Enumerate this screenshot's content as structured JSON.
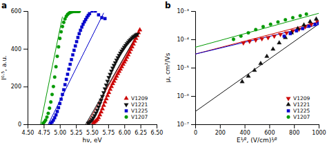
{
  "chart_data": [
    {
      "type": "scatter",
      "title": "a",
      "xlabel": "hν, eV",
      "ylabel": "I⁰·⁵, a.u.",
      "xlim": [
        4.5,
        6.5
      ],
      "ylim": [
        0,
        600
      ],
      "xticks": [
        {
          "value": 4.5,
          "label": "4.50"
        },
        4.75,
        {
          "value": 5.0,
          "label": "5.00"
        },
        5.25,
        {
          "value": 5.5,
          "label": "5.50"
        },
        5.75,
        {
          "value": 6.0,
          "label": "6.00"
        },
        6.25,
        {
          "value": 6.5,
          "label": "6.50"
        }
      ],
      "yticks": [
        0,
        200,
        400,
        600
      ],
      "grid": false,
      "legend": "lower right",
      "series": [
        {
          "name": "V1209",
          "type": "scatter",
          "color": "#cc0000",
          "marker": "triangle-up",
          "x": [
            5.52,
            5.54,
            5.56,
            5.58,
            5.6,
            5.62,
            5.64,
            5.66,
            5.68,
            5.7,
            5.72,
            5.74,
            5.76,
            5.78,
            5.8,
            5.82,
            5.84,
            5.86,
            5.88,
            5.9,
            5.92,
            5.94,
            5.96,
            5.98,
            6.0,
            6.02,
            6.04,
            6.06,
            6.08,
            6.1,
            6.12,
            6.14,
            6.16,
            6.18,
            6.2,
            6.22,
            6.24
          ],
          "values": [
            8,
            12,
            18,
            25,
            35,
            50,
            65,
            82,
            100,
            118,
            135,
            152,
            168,
            185,
            200,
            215,
            228,
            242,
            255,
            268,
            280,
            292,
            305,
            318,
            330,
            342,
            355,
            368,
            382,
            396,
            410,
            425,
            440,
            455,
            470,
            485,
            500
          ]
        },
        {
          "type": "line",
          "color": "#cc0000",
          "x": [
            5.42,
            6.24
          ],
          "values": [
            0,
            500
          ]
        },
        {
          "name": "V1221",
          "type": "scatter",
          "color": "#111111",
          "marker": "triangle-down",
          "x": [
            5.44,
            5.46,
            5.48,
            5.5,
            5.52,
            5.54,
            5.56,
            5.58,
            5.6,
            5.62,
            5.64,
            5.66,
            5.68,
            5.7,
            5.72,
            5.74,
            5.76,
            5.78,
            5.8,
            5.82,
            5.84,
            5.86,
            5.88,
            5.9,
            5.92,
            5.94,
            5.96,
            5.98,
            6.0,
            6.02,
            6.04,
            6.06,
            6.08,
            6.1,
            6.12,
            6.14,
            6.16,
            6.18,
            6.2
          ],
          "values": [
            5,
            10,
            16,
            24,
            34,
            46,
            60,
            75,
            92,
            110,
            128,
            148,
            168,
            188,
            208,
            228,
            248,
            265,
            282,
            298,
            312,
            326,
            340,
            353,
            365,
            377,
            388,
            398,
            408,
            418,
            427,
            435,
            443,
            450,
            457,
            463,
            468,
            473,
            477
          ]
        },
        {
          "type": "line",
          "color": "#111111",
          "x": [
            5.4,
            6.2
          ],
          "values": [
            0,
            477
          ]
        },
        {
          "name": "V1225",
          "type": "scatter",
          "color": "#0000cc",
          "marker": "square",
          "x": [
            4.86,
            4.88,
            4.9,
            4.92,
            4.94,
            4.96,
            4.98,
            5.0,
            5.02,
            5.04,
            5.06,
            5.08,
            5.1,
            5.12,
            5.14,
            5.16,
            5.18,
            5.2,
            5.22,
            5.24,
            5.26,
            5.28,
            5.3,
            5.32,
            5.34,
            5.36,
            5.38,
            5.4,
            5.42,
            5.44,
            5.46,
            5.5,
            5.55,
            5.6,
            5.65,
            5.7
          ],
          "values": [
            5,
            12,
            22,
            35,
            50,
            68,
            88,
            110,
            133,
            158,
            183,
            210,
            238,
            265,
            292,
            318,
            343,
            368,
            392,
            415,
            438,
            460,
            480,
            498,
            515,
            530,
            543,
            555,
            567,
            577,
            586,
            600,
            600,
            580,
            565,
            560
          ]
        },
        {
          "type": "line",
          "color": "#0000cc",
          "x": [
            4.82,
            5.68
          ],
          "values": [
            0,
            590
          ]
        },
        {
          "name": "V1207",
          "type": "scatter",
          "color": "#009900",
          "marker": "circle",
          "x": [
            4.74,
            4.76,
            4.78,
            4.8,
            4.82,
            4.84,
            4.86,
            4.88,
            4.9,
            4.92,
            4.94,
            4.96,
            4.98,
            5.0,
            5.02,
            5.04,
            5.06,
            5.08,
            5.1,
            5.12,
            5.14,
            5.16,
            5.18,
            5.2,
            5.22,
            5.24,
            5.26,
            5.28,
            5.3
          ],
          "values": [
            5,
            12,
            22,
            38,
            58,
            85,
            118,
            158,
            200,
            250,
            305,
            360,
            410,
            455,
            490,
            518,
            540,
            558,
            572,
            582,
            588,
            592,
            595,
            597,
            598,
            598,
            598,
            598,
            598
          ]
        },
        {
          "type": "line",
          "color": "#009900",
          "x": [
            4.7,
            5.04
          ],
          "values": [
            0,
            570
          ]
        }
      ]
    },
    {
      "type": "scatter",
      "title": "b",
      "xlabel": "E¹⁄², (V/cm)¹⁄²",
      "ylabel": "μ, cm²/Vs",
      "log": "y",
      "xlim": [
        0,
        1000
      ],
      "ylim": [
        1e-07,
        0.001
      ],
      "xticks": [
        0,
        200,
        400,
        600,
        800,
        1000
      ],
      "yticks": [
        {
          "value": 1e-07,
          "label": "10⁻⁷"
        },
        {
          "value": 1e-06,
          "label": "10⁻⁶"
        },
        {
          "value": 1e-05,
          "label": "10⁻⁵"
        },
        {
          "value": 0.0001,
          "label": "10⁻⁴"
        },
        {
          "value": 0.001,
          "label": "10⁻³"
        }
      ],
      "grid": false,
      "legend": "lower right",
      "series": [
        {
          "name": "V1209",
          "type": "scatter",
          "color": "#cc0000",
          "marker": "triangle-down",
          "x": [
            390,
            440,
            490,
            540,
            590,
            640,
            690,
            740,
            790,
            840,
            890,
            940,
            990
          ],
          "values": [
            7.5e-05,
            8.5e-05,
            9.5e-05,
            0.000105,
            0.000115,
            0.00013,
            0.00015,
            0.00017,
            0.0002,
            0.00023,
            0.00028,
            0.00034,
            0.00042
          ]
        },
        {
          "type": "line",
          "color": "#cc0000",
          "x": [
            0,
            1000
          ],
          "values": [
            3.019951720402016e-05,
            0.0004168693834703354
          ]
        },
        {
          "name": "V1221",
          "type": "scatter",
          "color": "#111111",
          "marker": "triangle-up",
          "x": [
            380,
            430,
            480,
            530,
            580,
            630,
            680,
            730,
            780,
            830,
            880,
            930,
            980
          ],
          "values": [
            3.2e-06,
            5e-06,
            8e-06,
            1.4e-05,
            2.5e-05,
            4.5e-05,
            7.5e-05,
            0.000115,
            0.00017,
            0.00024,
            0.00032,
            0.00042,
            0.00052
          ]
        },
        {
          "type": "line",
          "color": "#111111",
          "x": [
            0,
            1000
          ],
          "values": [
            2.818382931264454e-07,
            0.0003467368504525317
          ]
        },
        {
          "name": "V1225",
          "type": "scatter",
          "color": "#0000cc",
          "marker": "square",
          "x": [
            720,
            770,
            820,
            870,
            920,
            970,
            1000
          ],
          "values": [
            0.00013,
            0.00016,
            0.0002,
            0.00024,
            0.00029,
            0.00034,
            0.00037
          ]
        },
        {
          "type": "line",
          "color": "#0000cc",
          "x": [
            0,
            1000
          ],
          "values": [
            3.019951720402016e-05,
            0.0003311311214825911
          ]
        },
        {
          "name": "V1207",
          "type": "scatter",
          "color": "#009900",
          "marker": "circle",
          "x": [
            310,
            370,
            430,
            490,
            550,
            610,
            670,
            730,
            790,
            850,
            900
          ],
          "values": [
            0.0001,
            0.00013,
            0.00017,
            0.00022,
            0.00028,
            0.00034,
            0.00041,
            0.00049,
            0.00058,
            0.00068,
            0.00078
          ]
        },
        {
          "type": "line",
          "color": "#009900",
          "x": [
            0,
            1000
          ],
          "values": [
            5.248074602497726e-05,
            0.0008317637711026709
          ]
        }
      ]
    }
  ]
}
